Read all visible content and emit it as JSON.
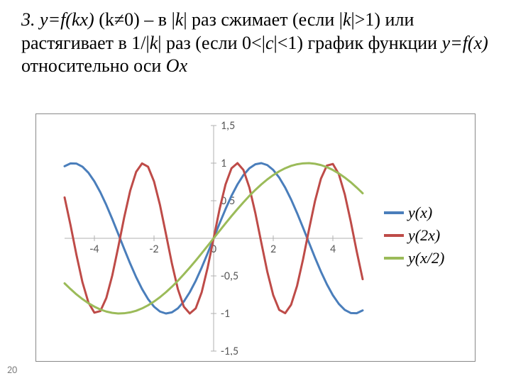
{
  "page_number": "20",
  "heading": {
    "prefix": "3. ",
    "segment_a": "y=f(kx)",
    "segment_b": " (k≠0) – в |",
    "segment_c": "k",
    "segment_d": "| раз сжимает (если |",
    "segment_e": "k",
    "segment_f": "|>1) или растягивает в 1/|",
    "segment_g": "k",
    "segment_h": "| раз (если 0<|",
    "segment_i": "c",
    "segment_j": "|<1) график функции ",
    "segment_k": "y=f(x)",
    "segment_l": " относительно оси ",
    "segment_m": "Ox",
    "font_size": 26
  },
  "chart": {
    "type": "line",
    "xlim": [
      -5,
      5
    ],
    "ylim": [
      -1.5,
      1.5
    ],
    "x_ticks": [
      -4,
      -2,
      0,
      2,
      4
    ],
    "y_ticks": [
      -1.5,
      -1,
      -0.5,
      0,
      0.5,
      1,
      1.5
    ],
    "y_tick_labels": [
      "-1,5",
      "-1",
      "-0,5",
      "0",
      "0,5",
      "1",
      "1,5"
    ],
    "x_tick_labels": [
      "-4",
      "-2",
      "0",
      "2",
      "4"
    ],
    "axis_color": "#b0b0b0",
    "tick_mark_color": "#b0b0b0",
    "tick_label_color": "#595959",
    "tick_label_fontsize": 16,
    "border_color": "#888888",
    "background_color": "#ffffff",
    "line_width": 3,
    "series": [
      {
        "name": "y(x)",
        "color": "#4a7ebb",
        "x": [
          -5.0,
          -4.8,
          -4.6,
          -4.4,
          -4.2,
          -4.0,
          -3.8,
          -3.6,
          -3.4,
          -3.2,
          -3.0,
          -2.8,
          -2.6,
          -2.4,
          -2.2,
          -2.0,
          -1.8,
          -1.6,
          -1.4,
          -1.2,
          -1.0,
          -0.8,
          -0.6,
          -0.4,
          -0.2,
          0.0,
          0.2,
          0.4,
          0.6,
          0.8,
          1.0,
          1.2,
          1.4,
          1.6,
          1.8,
          2.0,
          2.2,
          2.4,
          2.6,
          2.8,
          3.0,
          3.2,
          3.4,
          3.6,
          3.8,
          4.0,
          4.2,
          4.4,
          4.6,
          4.8,
          5.0
        ],
        "y": [
          0.959,
          0.996,
          0.994,
          0.952,
          0.872,
          0.757,
          0.612,
          0.443,
          0.256,
          0.058,
          -0.141,
          -0.335,
          -0.516,
          -0.675,
          -0.808,
          -0.909,
          -0.974,
          -1.0,
          -0.985,
          -0.932,
          -0.841,
          -0.717,
          -0.565,
          -0.389,
          -0.199,
          0.0,
          0.199,
          0.389,
          0.565,
          0.717,
          0.841,
          0.932,
          0.985,
          1.0,
          0.974,
          0.909,
          0.808,
          0.675,
          0.516,
          0.335,
          0.141,
          -0.058,
          -0.256,
          -0.443,
          -0.612,
          -0.757,
          -0.872,
          -0.952,
          -0.994,
          -0.996,
          -0.959
        ]
      },
      {
        "name": "y(2x)",
        "color": "#be4b48",
        "x": [
          -5.0,
          -4.8,
          -4.6,
          -4.4,
          -4.2,
          -4.0,
          -3.8,
          -3.6,
          -3.4,
          -3.2,
          -3.0,
          -2.8,
          -2.6,
          -2.4,
          -2.2,
          -2.0,
          -1.8,
          -1.6,
          -1.4,
          -1.2,
          -1.0,
          -0.8,
          -0.6,
          -0.4,
          -0.2,
          0.0,
          0.2,
          0.4,
          0.6,
          0.8,
          1.0,
          1.2,
          1.4,
          1.6,
          1.8,
          2.0,
          2.2,
          2.4,
          2.6,
          2.8,
          3.0,
          3.2,
          3.4,
          3.6,
          3.8,
          4.0,
          4.2,
          4.4,
          4.6,
          4.8,
          5.0
        ],
        "y": [
          0.544,
          0.174,
          -0.224,
          -0.585,
          -0.854,
          -0.989,
          -0.968,
          -0.794,
          -0.494,
          -0.117,
          0.279,
          0.631,
          0.883,
          0.996,
          0.952,
          0.757,
          0.443,
          0.058,
          -0.335,
          -0.675,
          -0.909,
          -1.0,
          -0.932,
          -0.717,
          -0.389,
          0.0,
          0.389,
          0.717,
          0.932,
          1.0,
          0.909,
          0.675,
          0.335,
          -0.058,
          -0.443,
          -0.757,
          -0.952,
          -0.996,
          -0.883,
          -0.631,
          -0.279,
          0.117,
          0.494,
          0.794,
          0.968,
          0.989,
          0.854,
          0.585,
          0.224,
          -0.174,
          -0.544
        ]
      },
      {
        "name": "y(x/2)",
        "color": "#9bbb59",
        "x": [
          -5.0,
          -4.8,
          -4.6,
          -4.4,
          -4.2,
          -4.0,
          -3.8,
          -3.6,
          -3.4,
          -3.2,
          -3.0,
          -2.8,
          -2.6,
          -2.4,
          -2.2,
          -2.0,
          -1.8,
          -1.6,
          -1.4,
          -1.2,
          -1.0,
          -0.8,
          -0.6,
          -0.4,
          -0.2,
          0.0,
          0.2,
          0.4,
          0.6,
          0.8,
          1.0,
          1.2,
          1.4,
          1.6,
          1.8,
          2.0,
          2.2,
          2.4,
          2.6,
          2.8,
          3.0,
          3.2,
          3.4,
          3.6,
          3.8,
          4.0,
          4.2,
          4.4,
          4.6,
          4.8,
          5.0
        ],
        "y": [
          -0.599,
          -0.675,
          -0.746,
          -0.808,
          -0.863,
          -0.909,
          -0.947,
          -0.974,
          -0.992,
          -1.0,
          -0.997,
          -0.985,
          -0.964,
          -0.932,
          -0.891,
          -0.841,
          -0.783,
          -0.717,
          -0.644,
          -0.565,
          -0.479,
          -0.389,
          -0.296,
          -0.199,
          -0.1,
          0.0,
          0.1,
          0.199,
          0.296,
          0.389,
          0.479,
          0.565,
          0.644,
          0.717,
          0.783,
          0.841,
          0.891,
          0.932,
          0.964,
          0.985,
          0.997,
          1.0,
          0.992,
          0.974,
          0.947,
          0.909,
          0.863,
          0.808,
          0.746,
          0.675,
          0.599
        ]
      }
    ],
    "legend": {
      "font_size": 22,
      "items": [
        {
          "label": "y(x)",
          "color": "#4a7ebb"
        },
        {
          "label": "y(2x)",
          "color": "#be4b48"
        },
        {
          "label": "y(x/2)",
          "color": "#9bbb59"
        }
      ]
    }
  }
}
